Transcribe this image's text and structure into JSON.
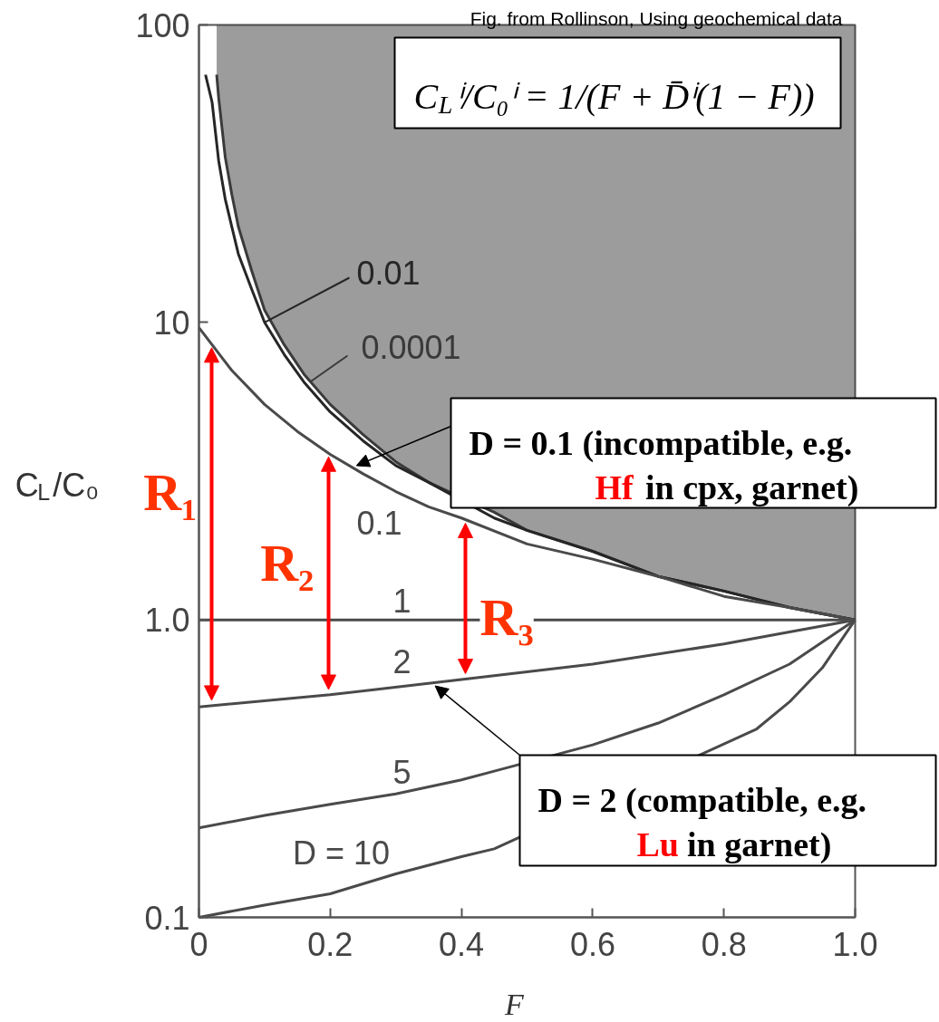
{
  "chart_data": {
    "type": "line",
    "log": "y",
    "xlabel": "F",
    "ylabel": "C$_{L}$/C₀",
    "xlim": [
      0,
      1
    ],
    "ylim": [
      0.1,
      100
    ],
    "xticks": [
      0,
      0.2,
      0.4,
      0.6,
      0.8,
      {
        "value": 1,
        "label": "1.0"
      }
    ],
    "yticks": [
      0.1,
      {
        "value": 1,
        "label": "1.0"
      },
      10,
      100
    ],
    "series": [
      {
        "name": "0.0001",
        "color": "#3a3a3a",
        "x": [
          0.027,
          0.03,
          0.04,
          0.05,
          0.06,
          0.08,
          0.1,
          0.13,
          0.16,
          0.2,
          0.25,
          0.3,
          0.35,
          0.45,
          0.5,
          0.6,
          0.7,
          0.8,
          0.9,
          1
        ],
        "values": [
          68,
          57,
          36,
          27,
          21,
          15,
          11,
          8.4,
          6.7,
          5.3,
          4.2,
          3.4,
          2.9,
          2.3,
          2,
          1.7,
          1.4,
          1.25,
          1.1,
          1
        ],
        "lower": [
          68,
          57,
          36,
          27,
          21,
          15,
          11,
          8.4,
          6.7,
          5.3,
          4.2,
          3.4,
          2.9,
          2.3,
          2,
          1.7,
          1.4,
          1.25,
          1.1,
          1
        ],
        "upper": [
          100,
          100,
          100,
          100,
          100,
          100,
          100,
          100,
          100,
          100,
          100,
          100,
          100,
          100,
          100,
          100,
          100,
          100,
          100,
          100
        ]
      },
      {
        "name": "0.01",
        "color": "#262626",
        "x": [
          0.01,
          0.02,
          0.03,
          0.04,
          0.05,
          0.06,
          0.08,
          0.1,
          0.13,
          0.16,
          0.2,
          0.25,
          0.3,
          0.35,
          0.45,
          0.5,
          0.6,
          0.7,
          0.8,
          0.9,
          1
        ],
        "values": [
          68,
          55,
          35,
          26,
          21,
          17,
          13,
          10,
          7.8,
          6.3,
          5,
          4,
          3.3,
          2.9,
          2.2,
          2,
          1.7,
          1.4,
          1.25,
          1.1,
          1
        ]
      },
      {
        "name": "0.1",
        "color": "#4a4a4a",
        "x": [
          0,
          0.05,
          0.1,
          0.15,
          0.2,
          0.25,
          0.3,
          0.35,
          0.4,
          0.5,
          0.6,
          0.7,
          0.8,
          0.9,
          1
        ],
        "values": [
          9.6,
          6.9,
          5.3,
          4.3,
          3.6,
          3.1,
          2.7,
          2.4,
          2.2,
          1.8,
          1.6,
          1.4,
          1.2,
          1.1,
          1
        ]
      },
      {
        "name": "1",
        "color": "#4a4a4a",
        "x": [
          0,
          1
        ],
        "values": [
          1,
          1
        ]
      },
      {
        "name": "2",
        "color": "#4a4a4a",
        "x": [
          0,
          0.2,
          0.4,
          0.6,
          0.8,
          1
        ],
        "values": [
          0.51,
          0.56,
          0.63,
          0.71,
          0.83,
          1
        ]
      },
      {
        "name": "5",
        "color": "#4a4a4a",
        "x": [
          0,
          0.1,
          0.2,
          0.3,
          0.4,
          0.45,
          0.6,
          0.7,
          0.8,
          0.9,
          1
        ],
        "values": [
          0.2,
          0.22,
          0.24,
          0.26,
          0.29,
          0.31,
          0.38,
          0.45,
          0.56,
          0.71,
          1
        ]
      },
      {
        "name": "D = 10",
        "color": "#4a4a4a",
        "x": [
          0,
          0.1,
          0.2,
          0.3,
          0.4,
          0.45,
          0.85,
          0.9,
          0.95,
          1
        ],
        "values": [
          0.1,
          0.11,
          0.12,
          0.14,
          0.16,
          0.17,
          0.43,
          0.53,
          0.69,
          1
        ]
      }
    ],
    "annotations": [
      "Fig. from Rollinson, Using geochemical data",
      "C$_{L}$ⁱ/C₀ⁱ = 1/(F + D̄ⁱ(1 − F))",
      {
        "text": "D = 0.1 (incompatible, e.g.\nHf in cpx, garnet)",
        "x": 0.24,
        "y": 3.3
      },
      {
        "text": "D = 2 (compatible, e.g.\nLu in garnet)",
        "x": 0.36,
        "y": 0.6
      },
      "R₁",
      "R₂",
      "R₃"
    ]
  }
}
